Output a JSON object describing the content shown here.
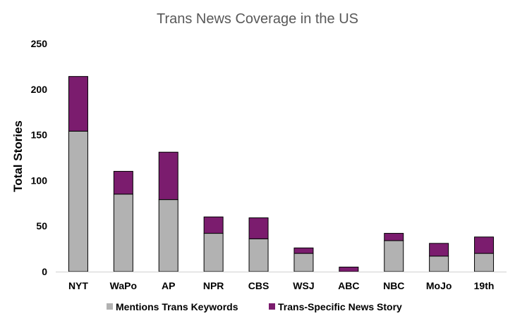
{
  "chart_data": {
    "type": "bar",
    "stacked": true,
    "title": "Trans News Coverage in the US",
    "xlabel": "",
    "ylabel": "Total Stories",
    "ylim": [
      0,
      250
    ],
    "yticks": [
      0,
      50,
      100,
      150,
      200,
      250
    ],
    "grid": false,
    "legend_position": "bottom",
    "categories": [
      "NYT",
      "WaPo",
      "AP",
      "NPR",
      "CBS",
      "WSJ",
      "ABC",
      "NBC",
      "MoJo",
      "19th"
    ],
    "series": [
      {
        "name": "Mentions Trans Keywords",
        "color": "#b2b2b2",
        "values": [
          154,
          85,
          79,
          42,
          36,
          20,
          0,
          34,
          17,
          20
        ]
      },
      {
        "name": "Trans-Specific News Story",
        "color": "#7b1c6e",
        "values": [
          60,
          25,
          52,
          18,
          23,
          6,
          5,
          8,
          14,
          18
        ]
      }
    ]
  }
}
